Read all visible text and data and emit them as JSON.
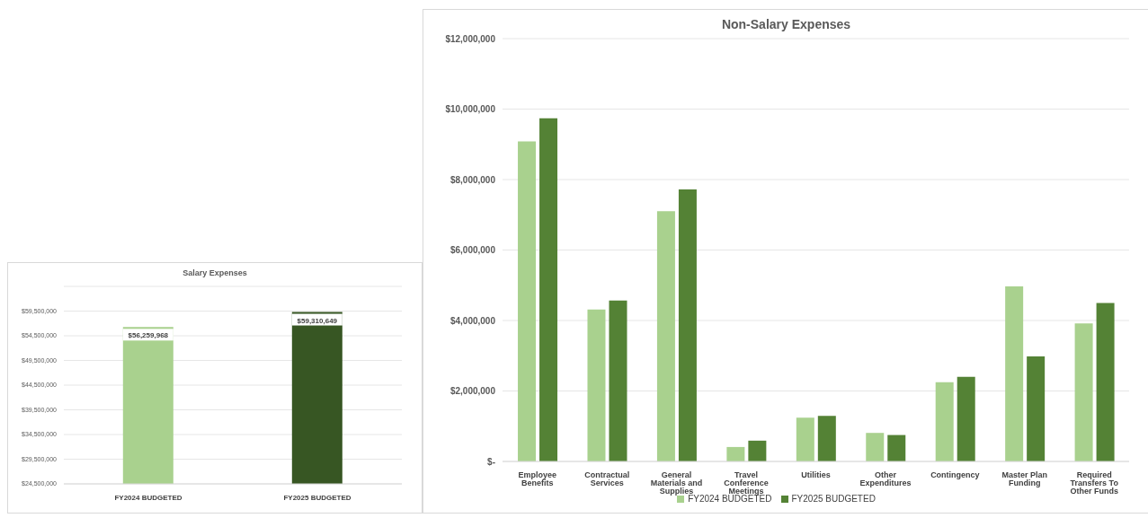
{
  "chart_data": [
    {
      "type": "bar",
      "title": "Salary Expenses",
      "categories": [
        "FY2024 BUDGETED",
        "FY2025 BUDGETED"
      ],
      "values": [
        56259968,
        59310649
      ],
      "colors": [
        "#a9d18e",
        "#375623"
      ],
      "value_labels": [
        "$56,259,968",
        "$59,310,649"
      ],
      "ylim": [
        24500000,
        64500000
      ],
      "yticks": [
        {
          "value": 24500000,
          "label": "$24,500,000"
        },
        {
          "value": 29500000,
          "label": "$29,500,000"
        },
        {
          "value": 34500000,
          "label": "$34,500,000"
        },
        {
          "value": 39500000,
          "label": "$39,500,000"
        },
        {
          "value": 44500000,
          "label": "$44,500,000"
        },
        {
          "value": 49500000,
          "label": "$49,500,000"
        },
        {
          "value": 54500000,
          "label": "$54,500,000"
        },
        {
          "value": 59500000,
          "label": "$59,500,000"
        },
        {
          "value": 64500000,
          "label": null
        }
      ],
      "grid": "y"
    },
    {
      "type": "bar",
      "title": "Non-Salary Expenses",
      "categories": [
        "Employee Benefits",
        "Contractual Services",
        "General Materials and Supplies",
        "Travel Conference Meetings",
        "Utilities",
        "Other Expenditures",
        "Contingency",
        "Master Plan Funding",
        "Required Transfers To Other Funds"
      ],
      "series": [
        {
          "name": "FY2024 BUDGETED",
          "color": "#a9d18e",
          "values": [
            9080000,
            4310000,
            7100000,
            410000,
            1240000,
            810000,
            2250000,
            4970000,
            3920000
          ]
        },
        {
          "name": "FY2025 BUDGETED",
          "color": "#548235",
          "values": [
            9740000,
            4570000,
            7720000,
            590000,
            1290000,
            750000,
            2400000,
            2980000,
            4500000
          ]
        }
      ],
      "ylim": [
        0,
        12000000
      ],
      "yticks": [
        {
          "value": 0,
          "label": "$-"
        },
        {
          "value": 2000000,
          "label": "$2,000,000"
        },
        {
          "value": 4000000,
          "label": "$4,000,000"
        },
        {
          "value": 6000000,
          "label": "$6,000,000"
        },
        {
          "value": 8000000,
          "label": "$8,000,000"
        },
        {
          "value": 10000000,
          "label": "$10,000,000"
        },
        {
          "value": 12000000,
          "label": "$12,000,000"
        }
      ],
      "grid": "y",
      "legend": "bottom"
    }
  ]
}
